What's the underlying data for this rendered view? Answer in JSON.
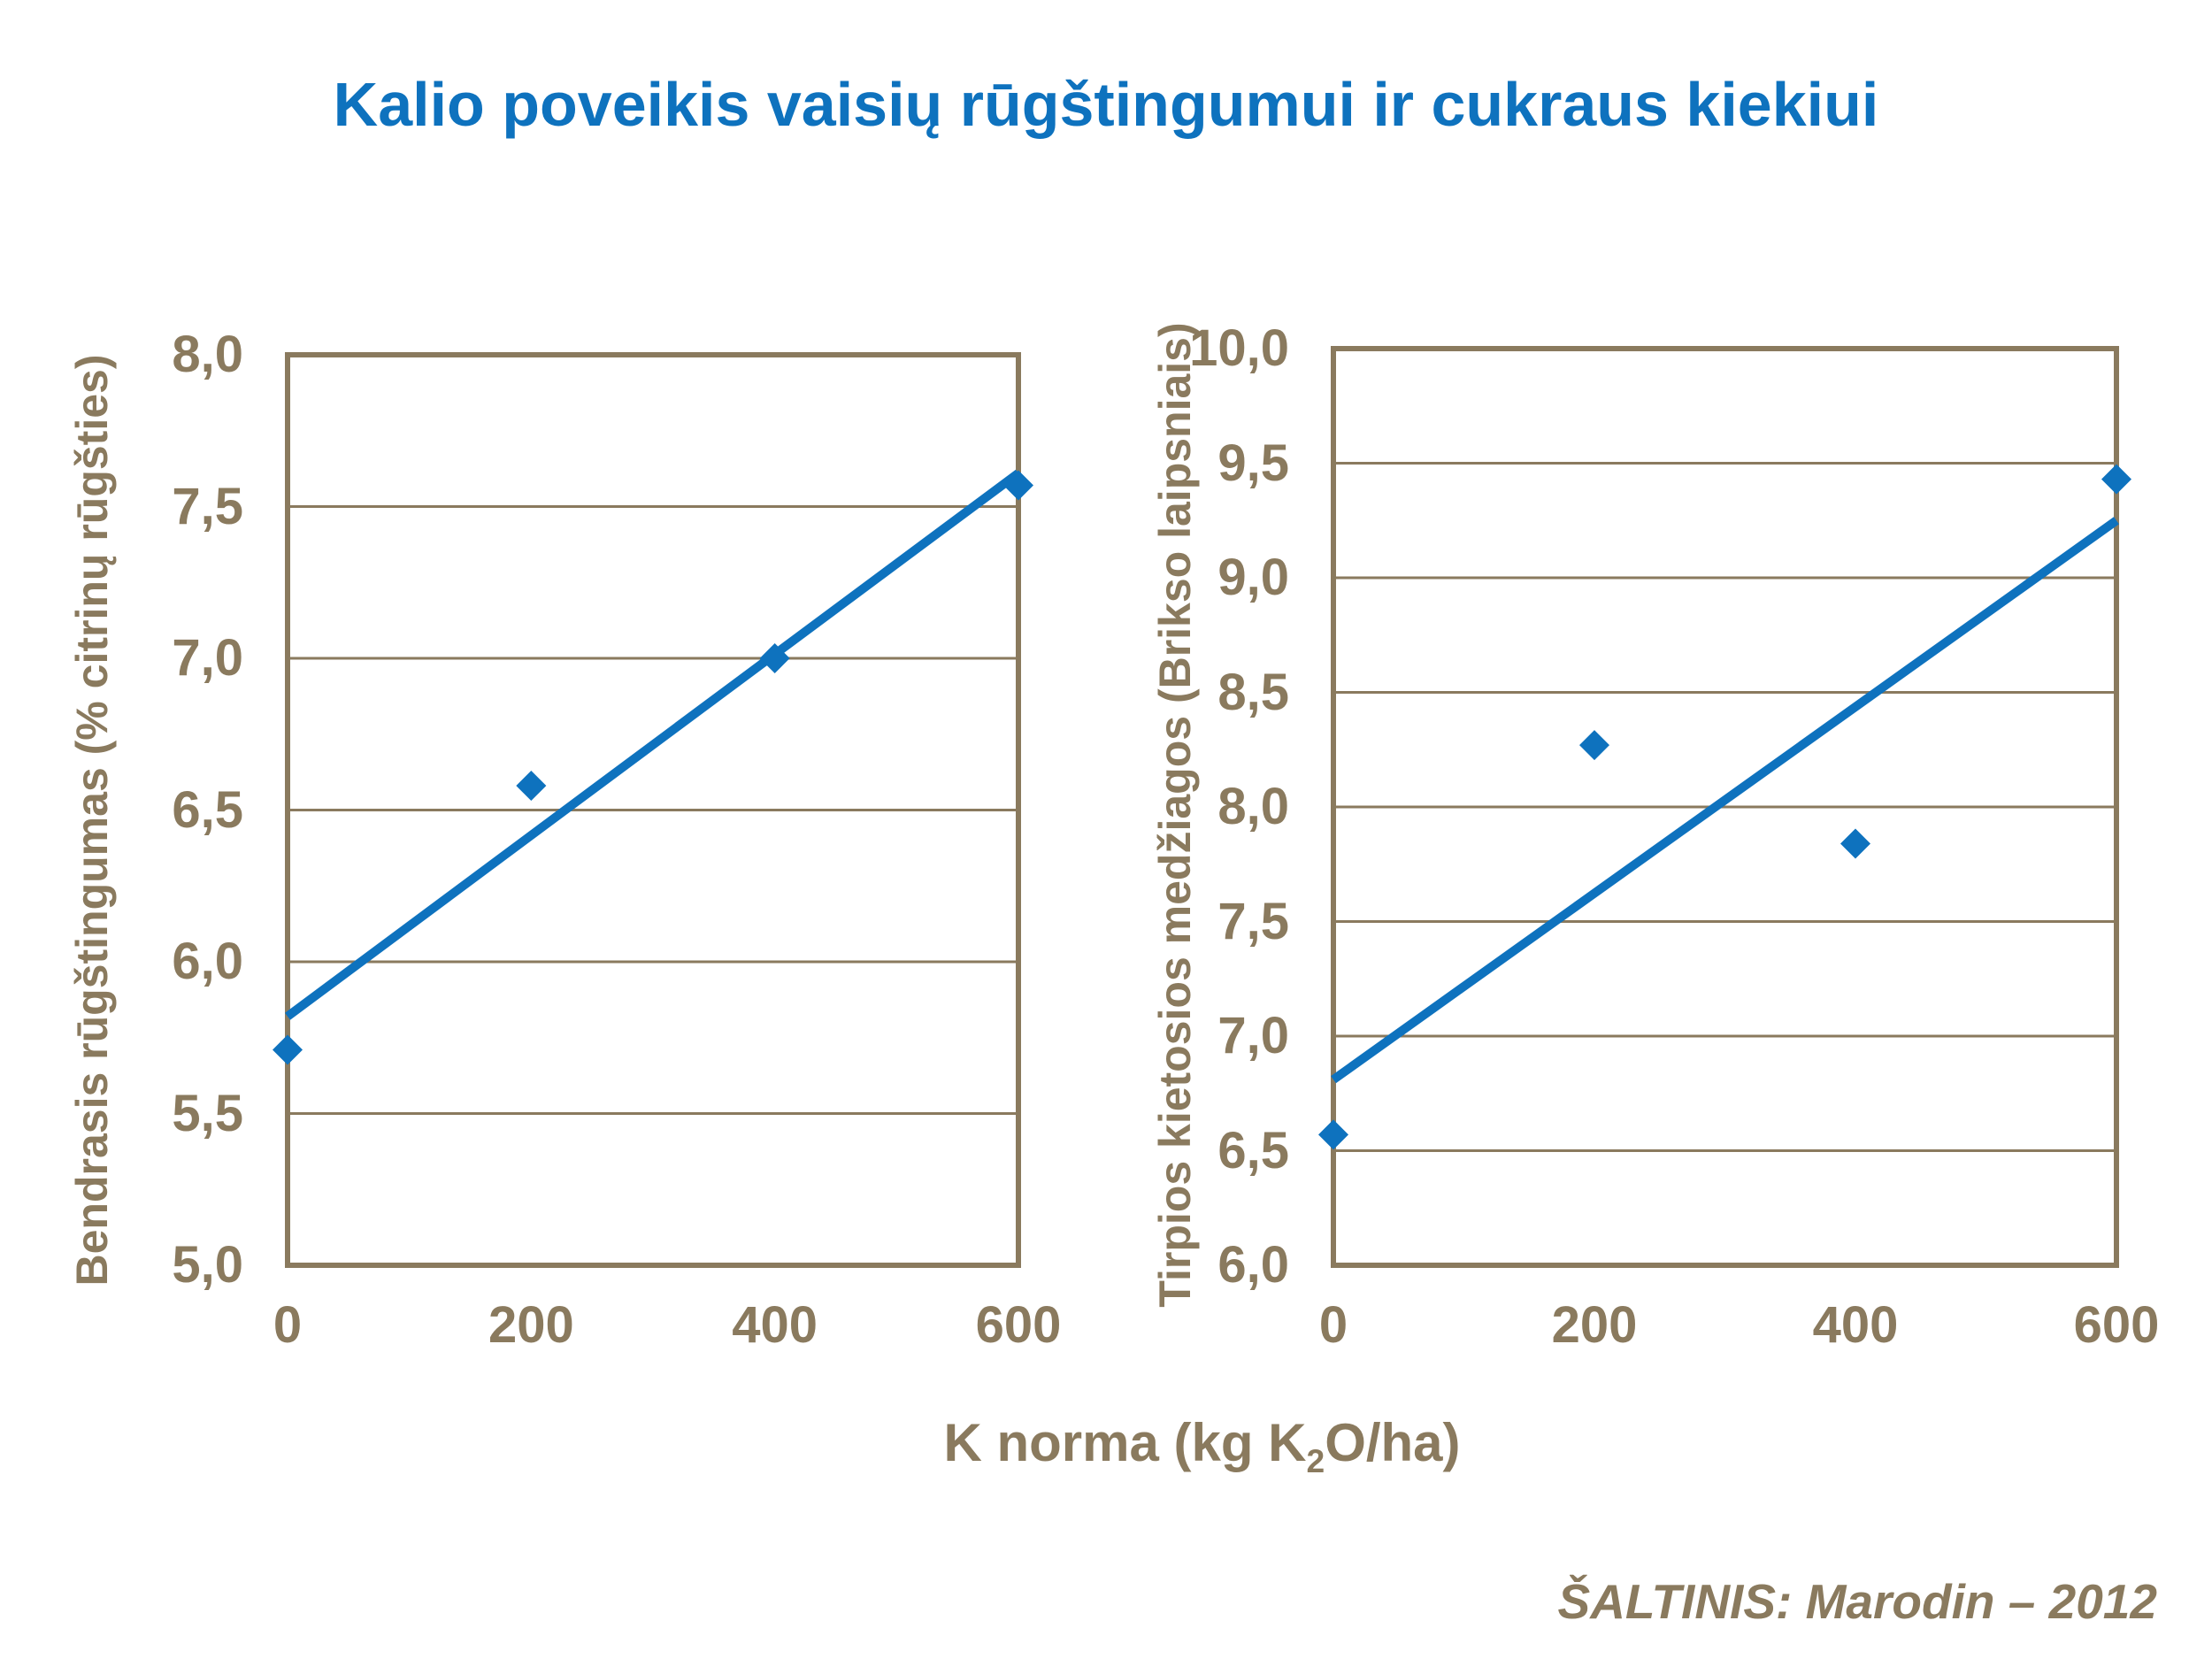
{
  "title": "Kalio poveikis vaisių rūgštingumui ir cukraus kiekiui",
  "source": "ŠALTINIS:  Marodin – 2012",
  "x_axis_title": {
    "prefix": "K norma (kg K",
    "sub": "2",
    "suffix": "O/ha)"
  },
  "colors": {
    "accent_blue": "#0E72BE",
    "axis_brown": "#8A7A5E",
    "background": "#FFFFFF"
  },
  "chart_data": [
    {
      "type": "scatter",
      "title": "",
      "ylabel": "Bendrasis rūgštingumas (% citrinų rūgšties)",
      "xlabel": "K norma (kg K2O/ha)",
      "x": [
        0,
        200,
        400,
        600
      ],
      "y": [
        5.71,
        6.58,
        7.0,
        7.57
      ],
      "trend": {
        "type": "linear",
        "x": [
          0,
          600
        ],
        "y": [
          5.82,
          7.61
        ]
      },
      "xlim": [
        0,
        600
      ],
      "ylim": [
        5.0,
        8.0
      ],
      "xticks": [
        0,
        200,
        400,
        600
      ],
      "xtick_labels": [
        "0",
        "200",
        "400",
        "600"
      ],
      "yticks": [
        8.0,
        7.5,
        7.0,
        6.5,
        6.0,
        5.5,
        5.0
      ],
      "ytick_labels": [
        "8,0",
        "7,5",
        "7,0",
        "6,5",
        "6,0",
        "5,5",
        "5,0"
      ],
      "grid": "horizontal",
      "legend": "none",
      "marker": "diamond"
    },
    {
      "type": "scatter",
      "title": "",
      "ylabel": "Tirpios kietosios medžiagos (Brikso laipsniais)",
      "xlabel": "K norma (kg K2O/ha)",
      "x": [
        0,
        200,
        400,
        600
      ],
      "y": [
        6.57,
        8.27,
        7.84,
        9.43
      ],
      "trend": {
        "type": "linear",
        "x": [
          0,
          600
        ],
        "y": [
          6.81,
          9.25
        ]
      },
      "xlim": [
        0,
        600
      ],
      "ylim": [
        6.0,
        10.0
      ],
      "xticks": [
        0,
        200,
        400,
        600
      ],
      "xtick_labels": [
        "0",
        "200",
        "400",
        "600"
      ],
      "yticks": [
        10.0,
        9.5,
        9.0,
        8.5,
        8.0,
        7.5,
        7.0,
        6.5,
        6.0
      ],
      "ytick_labels": [
        "10,0",
        "9,5",
        "9,0",
        "8,5",
        "8,0",
        "7,5",
        "7,0",
        "6,5",
        "6,0"
      ],
      "grid": "horizontal",
      "legend": "none",
      "marker": "diamond"
    }
  ]
}
